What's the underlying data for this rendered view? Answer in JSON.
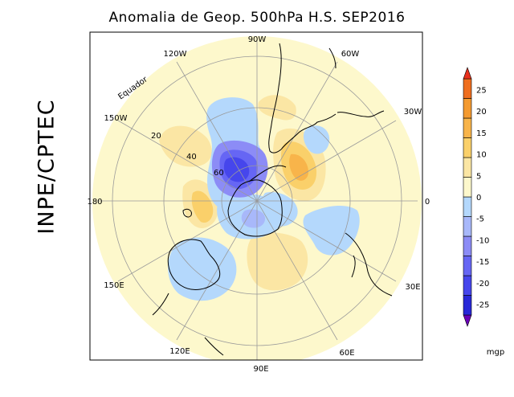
{
  "title": "Anomalia de Geop. 500hPa H.S. SEP2016",
  "side_label": "INPE/CPTEC",
  "map": {
    "projection": "south-polar-stereographic",
    "longitude_labels": [
      "90W",
      "60W",
      "30W",
      "0",
      "30E",
      "60E",
      "90E",
      "120E",
      "150E",
      "180",
      "150W",
      "120W"
    ],
    "latitude_labels": [
      "20",
      "40",
      "60"
    ],
    "equator_label": "Equador"
  },
  "colorbar": {
    "unit": "mgp",
    "tick_labels": [
      "25",
      "20",
      "15",
      "10",
      "5",
      "0",
      "-5",
      "-10",
      "-15",
      "-20",
      "-25"
    ],
    "colors": [
      "#6a00b8",
      "#2828d8",
      "#4646ec",
      "#6666f4",
      "#8c8cf6",
      "#a8b8fa",
      "#b4d8fc",
      "#fdf8cc",
      "#fbe6a4",
      "#fad06a",
      "#f8b44a",
      "#f49a30",
      "#ef6e1e",
      "#e8301c"
    ]
  },
  "anomaly_centers": [
    {
      "sign": "negative",
      "level": "-25",
      "region": "Bellingshausen/Amundsen Sea"
    },
    {
      "sign": "positive",
      "level": "15",
      "region": "South Atlantic near Drake Passage"
    }
  ]
}
